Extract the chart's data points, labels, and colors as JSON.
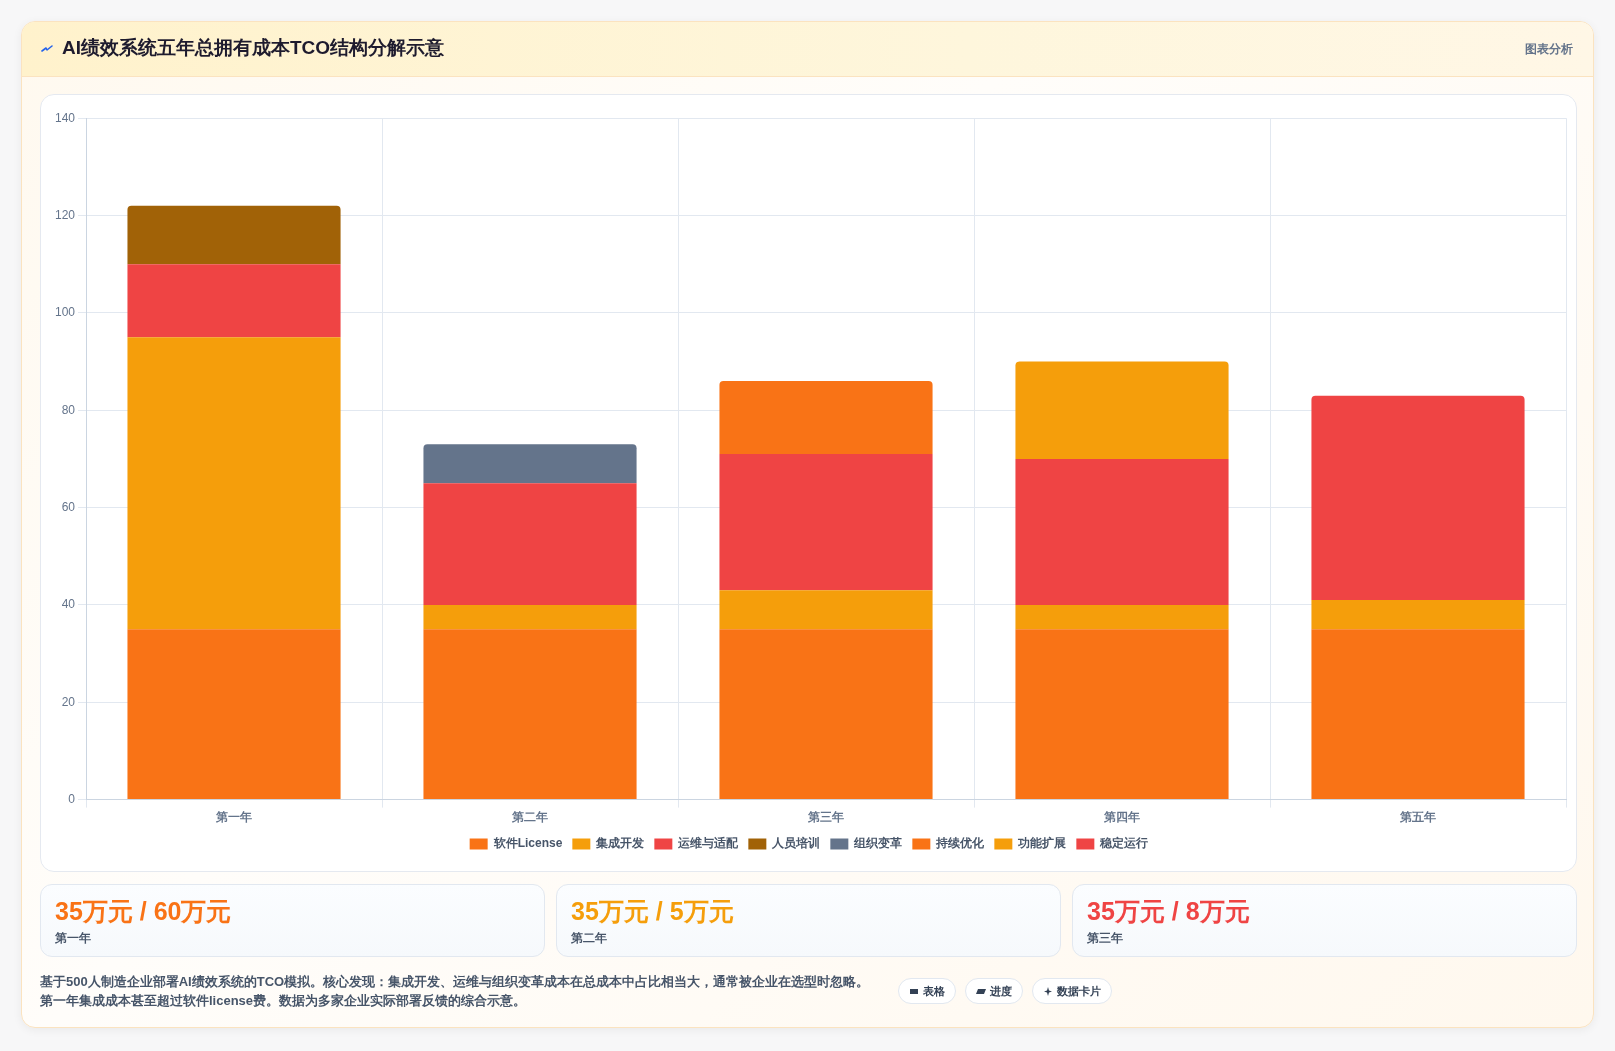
{
  "chart_data": [
    {
      "type": "bar",
      "title": "AI绩效系统五年总拥有成本TCO结构分解示意",
      "categories": [
        "第一年",
        "第二年",
        "第三年",
        "第四年",
        "第五年"
      ],
      "series": [
        {
          "name": "软件License",
          "color": "#f97316",
          "values": [
            35,
            35,
            35,
            35,
            35
          ]
        },
        {
          "name": "集成开发",
          "color": "#f59e0b",
          "values": [
            60,
            5,
            8,
            5,
            6
          ]
        },
        {
          "name": "运维与适配",
          "color": "#ef4444",
          "values": [
            15,
            25,
            28,
            30,
            null
          ]
        },
        {
          "name": "人员培训",
          "color": "#a16207",
          "values": [
            12,
            null,
            null,
            null,
            null
          ]
        },
        {
          "name": "组织变革",
          "color": "#64748b",
          "values": [
            null,
            8,
            null,
            null,
            null
          ]
        },
        {
          "name": "持续优化",
          "color": "#f97316",
          "values": [
            null,
            null,
            15,
            null,
            null
          ]
        },
        {
          "name": "功能扩展",
          "color": "#f59e0b",
          "values": [
            null,
            null,
            null,
            20,
            null
          ]
        },
        {
          "name": "稳定运行",
          "color": "#ef4444",
          "values": [
            null,
            null,
            null,
            null,
            42
          ]
        }
      ],
      "stacked": true,
      "ylim": [
        0,
        140
      ],
      "yticks": [
        0,
        20,
        40,
        60,
        80,
        100,
        120,
        140
      ],
      "grid": true,
      "legend": "bottom",
      "annotations": [
        "图表分析",
        "基于500人制造企业部署AI绩效系统的TCO模拟。核心发现：集成开发、运维与组织变革成本在总成本中占比相当大，通常被企业在选型时忽略。第一年集成成本甚至超过软件license费。数据为多家企业实际部署反馈的综合示意。",
        "表格",
        "进度",
        "数据卡片"
      ]
    },
    {
      "type": "other",
      "annotations": [
        "35万元 / 60万元",
        "第一年",
        "35万元 / 5万元",
        "第二年",
        "35万元 / 8万元",
        "第三年"
      ],
      "colors": [
        "#f97316",
        "#f59e0b",
        "#ef4444"
      ]
    }
  ]
}
